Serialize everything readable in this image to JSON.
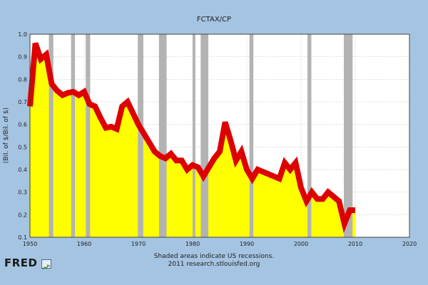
{
  "chart_data": {
    "type": "area",
    "title": "FCTAX/CP",
    "xlabel": "",
    "ylabel": "(Bil. of $/Bil. of $)",
    "xlim": [
      1950,
      2020
    ],
    "ylim": [
      0.1,
      1.0
    ],
    "x_ticks": [
      "1950",
      "1960",
      "1970",
      "1980",
      "1990",
      "2000",
      "2010",
      "2020"
    ],
    "y_ticks": [
      "0.1",
      "0.2",
      "0.3",
      "0.4",
      "0.5",
      "0.6",
      "0.7",
      "0.8",
      "0.9",
      "1.0"
    ],
    "grid": true,
    "series": [
      {
        "x": [
          1950,
          1951,
          1952,
          1953,
          1954,
          1955,
          1956,
          1957,
          1958,
          1959,
          1960,
          1961,
          1962,
          1963,
          1964,
          1965,
          1966,
          1967,
          1968,
          1969,
          1970,
          1971,
          1972,
          1973,
          1974,
          1975,
          1976,
          1977,
          1978,
          1979,
          1980,
          1981,
          1982,
          1983,
          1984,
          1985,
          1986,
          1987,
          1988,
          1989,
          1990,
          1991,
          1992,
          1993,
          1994,
          1995,
          1996,
          1997,
          1998,
          1999,
          2000,
          2001,
          2002,
          2003,
          2004,
          2005,
          2006,
          2007,
          2008,
          2009,
          2010
        ],
        "y": [
          0.68,
          0.96,
          0.89,
          0.91,
          0.78,
          0.75,
          0.73,
          0.74,
          0.745,
          0.73,
          0.745,
          0.69,
          0.68,
          0.63,
          0.585,
          0.59,
          0.58,
          0.68,
          0.7,
          0.65,
          0.6,
          0.56,
          0.52,
          0.48,
          0.46,
          0.45,
          0.47,
          0.44,
          0.44,
          0.4,
          0.42,
          0.41,
          0.37,
          0.41,
          0.45,
          0.48,
          0.61,
          0.53,
          0.44,
          0.48,
          0.4,
          0.36,
          0.4,
          0.39,
          0.38,
          0.37,
          0.36,
          0.43,
          0.4,
          0.43,
          0.32,
          0.26,
          0.3,
          0.27,
          0.27,
          0.3,
          0.28,
          0.26,
          0.16,
          0.22,
          0.22
        ]
      }
    ],
    "recessions": [
      [
        1953.5,
        1954.3
      ],
      [
        1957.6,
        1958.3
      ],
      [
        1960.3,
        1961.1
      ],
      [
        1969.9,
        1970.9
      ],
      [
        1973.8,
        1975.2
      ],
      [
        1980.0,
        1980.5
      ],
      [
        1981.5,
        1982.9
      ],
      [
        1990.5,
        1991.2
      ],
      [
        2001.2,
        2001.9
      ],
      [
        2007.9,
        2009.5
      ]
    ],
    "colors": {
      "line": "#dd0000",
      "fill": "#ffff00",
      "recession": "#b3b3b3",
      "plot_bg": "#ffffff",
      "grid": "#999999"
    }
  },
  "footer": {
    "line1": "Shaded areas indicate US recessions.",
    "line2": "2011 research.stlouisfed.org"
  },
  "logo": {
    "text": "FRED"
  }
}
